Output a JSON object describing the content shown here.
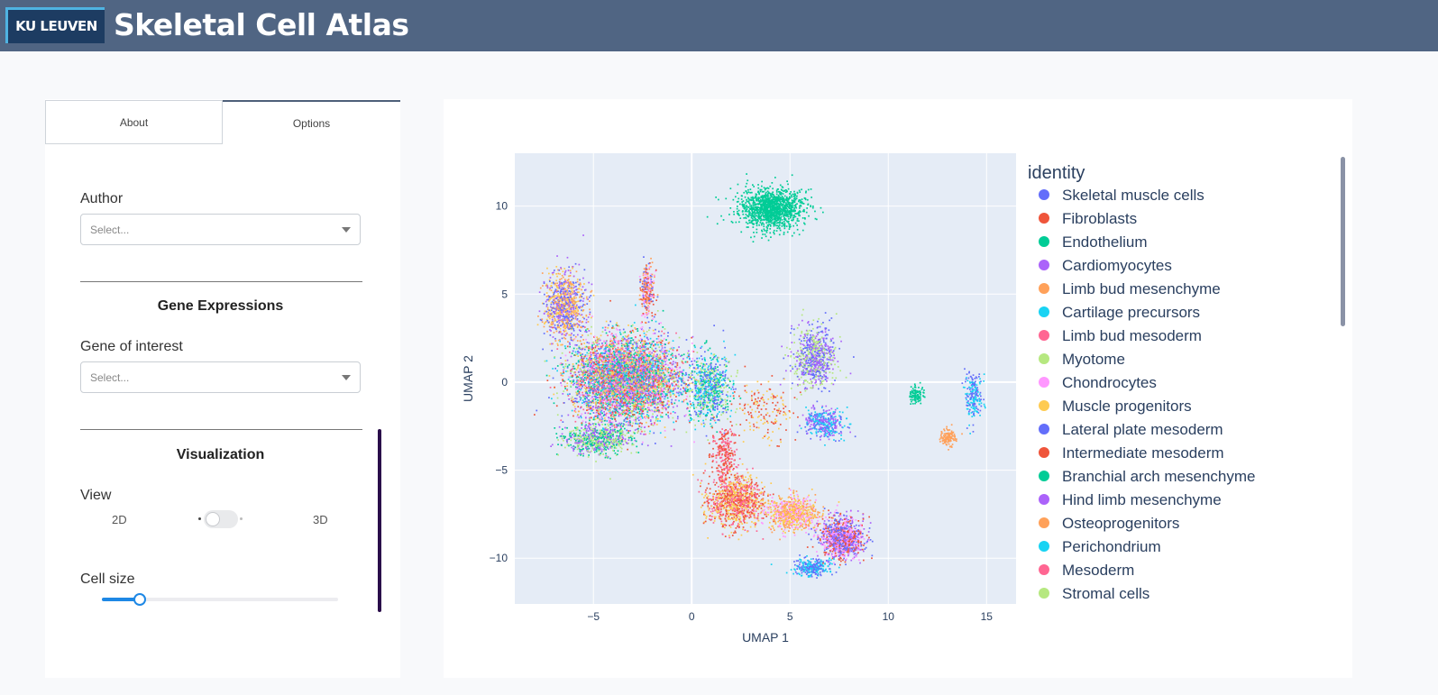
{
  "header": {
    "logo_text": "KU LEUVEN",
    "title": "Skeletal Cell Atlas",
    "bg_color": "#506583"
  },
  "tabs": [
    {
      "label": "About",
      "active": false
    },
    {
      "label": "Options",
      "active": true
    }
  ],
  "options": {
    "author": {
      "label": "Author",
      "placeholder": "Select..."
    },
    "gene_section": {
      "title": "Gene Expressions"
    },
    "gene": {
      "label": "Gene of interest",
      "placeholder": "Select..."
    },
    "viz_section": {
      "title": "Visualization"
    },
    "view": {
      "label": "View",
      "option_left": "2D",
      "option_right": "3D",
      "selected": "2D"
    },
    "cell_size": {
      "label": "Cell size",
      "value_fraction": 0.16
    }
  },
  "chart_data": {
    "type": "scatter",
    "xlabel": "UMAP 1",
    "ylabel": "UMAP 2",
    "xlim": [
      -9,
      16.5
    ],
    "ylim": [
      -12.6,
      13
    ],
    "xticks": [
      -5,
      0,
      5,
      10,
      15
    ],
    "yticks": [
      10,
      5,
      0,
      -5,
      -10
    ],
    "grid": true,
    "background": "#e5ecf6",
    "legend": {
      "title": "identity",
      "position": "right",
      "items": [
        {
          "name": "Skeletal muscle cells",
          "color": "#636efa"
        },
        {
          "name": "Fibroblasts",
          "color": "#ef553b"
        },
        {
          "name": "Endothelium",
          "color": "#00cc96"
        },
        {
          "name": "Cardiomyocytes",
          "color": "#ab63fa"
        },
        {
          "name": "Limb bud mesenchyme",
          "color": "#ffa15a"
        },
        {
          "name": "Cartilage precursors",
          "color": "#19d3f3"
        },
        {
          "name": "Limb bud mesoderm",
          "color": "#ff6692"
        },
        {
          "name": "Myotome",
          "color": "#b6e880"
        },
        {
          "name": "Chondrocytes",
          "color": "#ff97ff"
        },
        {
          "name": "Muscle progenitors",
          "color": "#fecb52"
        },
        {
          "name": "Lateral plate mesoderm",
          "color": "#636efa"
        },
        {
          "name": "Intermediate mesoderm",
          "color": "#ef553b"
        },
        {
          "name": "Branchial arch mesenchyme",
          "color": "#00cc96"
        },
        {
          "name": "Hind limb mesenchyme",
          "color": "#ab63fa"
        },
        {
          "name": "Osteoprogenitors",
          "color": "#ffa15a"
        },
        {
          "name": "Perichondrium",
          "color": "#19d3f3"
        },
        {
          "name": "Mesoderm",
          "color": "#ff6692"
        },
        {
          "name": "Stromal cells",
          "color": "#b6e880"
        }
      ]
    },
    "clusters": [
      {
        "cx": 4.0,
        "cy": 9.9,
        "sx": 1.3,
        "sy": 0.9,
        "n": 1300,
        "colors": [
          "#00cc96"
        ]
      },
      {
        "cx": -3.4,
        "cy": 0.2,
        "sx": 2.2,
        "sy": 1.9,
        "n": 5200,
        "colors": [
          "#ef553b",
          "#ff97ff",
          "#636efa",
          "#ab63fa",
          "#b6e880",
          "#ff6692",
          "#19d3f3",
          "#00cc96",
          "#fecb52"
        ]
      },
      {
        "cx": -6.5,
        "cy": 4.4,
        "sx": 0.8,
        "sy": 1.5,
        "n": 900,
        "colors": [
          "#fecb52",
          "#636efa",
          "#ab63fa",
          "#ffa15a"
        ]
      },
      {
        "cx": -2.3,
        "cy": 5.2,
        "sx": 0.3,
        "sy": 1.2,
        "n": 280,
        "colors": [
          "#ffa15a",
          "#ef553b",
          "#ff97ff",
          "#636efa"
        ]
      },
      {
        "cx": 6.2,
        "cy": 1.4,
        "sx": 0.9,
        "sy": 1.4,
        "n": 700,
        "colors": [
          "#b6e880",
          "#ab63fa",
          "#636efa"
        ]
      },
      {
        "cx": 6.7,
        "cy": -2.3,
        "sx": 0.8,
        "sy": 0.7,
        "n": 380,
        "colors": [
          "#636efa",
          "#19d3f3",
          "#ab63fa"
        ]
      },
      {
        "cx": 2.2,
        "cy": -6.7,
        "sx": 1.2,
        "sy": 1.2,
        "n": 1000,
        "colors": [
          "#ef553b",
          "#ff6692",
          "#fecb52"
        ]
      },
      {
        "cx": 5.1,
        "cy": -7.4,
        "sx": 1.0,
        "sy": 0.8,
        "n": 700,
        "colors": [
          "#fecb52",
          "#ffa15a",
          "#ff97ff"
        ]
      },
      {
        "cx": 7.6,
        "cy": -8.8,
        "sx": 0.9,
        "sy": 0.9,
        "n": 1000,
        "colors": [
          "#ef553b",
          "#ff97ff",
          "#ab63fa",
          "#636efa"
        ]
      },
      {
        "cx": 6.1,
        "cy": -10.5,
        "sx": 0.7,
        "sy": 0.4,
        "n": 280,
        "colors": [
          "#636efa",
          "#19d3f3"
        ]
      },
      {
        "cx": 11.4,
        "cy": -0.7,
        "sx": 0.3,
        "sy": 0.4,
        "n": 110,
        "colors": [
          "#00cc96"
        ]
      },
      {
        "cx": 14.3,
        "cy": -0.8,
        "sx": 0.35,
        "sy": 1.2,
        "n": 200,
        "colors": [
          "#19d3f3",
          "#636efa"
        ]
      },
      {
        "cx": 13.0,
        "cy": -3.1,
        "sx": 0.3,
        "sy": 0.4,
        "n": 120,
        "colors": [
          "#ffa15a"
        ]
      },
      {
        "cx": 0.9,
        "cy": -0.3,
        "sx": 0.9,
        "sy": 1.6,
        "n": 700,
        "colors": [
          "#b6e880",
          "#19d3f3",
          "#636efa",
          "#00cc96"
        ]
      },
      {
        "cx": -4.8,
        "cy": -3.2,
        "sx": 1.4,
        "sy": 0.7,
        "n": 700,
        "colors": [
          "#b6e880",
          "#00cc96",
          "#ab63fa"
        ]
      },
      {
        "cx": 3.6,
        "cy": -1.7,
        "sx": 1.2,
        "sy": 1.4,
        "n": 160,
        "colors": [
          "#ef553b",
          "#fecb52"
        ]
      },
      {
        "cx": 1.6,
        "cy": -4.0,
        "sx": 0.5,
        "sy": 1.2,
        "n": 250,
        "colors": [
          "#ef553b",
          "#ff6692"
        ]
      }
    ]
  }
}
